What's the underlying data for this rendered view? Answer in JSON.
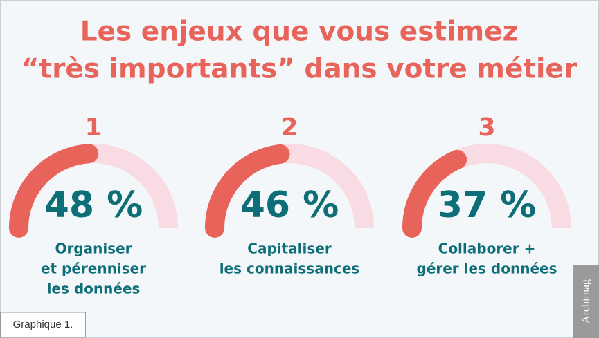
{
  "chart_data": {
    "type": "gauge",
    "title": [
      "Les enjeux que vous estimez",
      "“très importants” dans votre métier"
    ],
    "ranks": [
      1,
      2,
      3
    ],
    "values": [
      48,
      46,
      37
    ],
    "value_labels": [
      "48 %",
      "46 %",
      "37 %"
    ],
    "labels": [
      [
        "Organiser",
        "et pérenniser",
        "les données"
      ],
      [
        "Capitaliser",
        "les connaissances"
      ],
      [
        "Collaborer +",
        "gérer les données"
      ]
    ],
    "ylim": [
      0,
      100
    ],
    "color": "#e8635a",
    "track_color": "#f8dbe3",
    "footnote": "Graphique 1.",
    "source": "Archimag"
  }
}
